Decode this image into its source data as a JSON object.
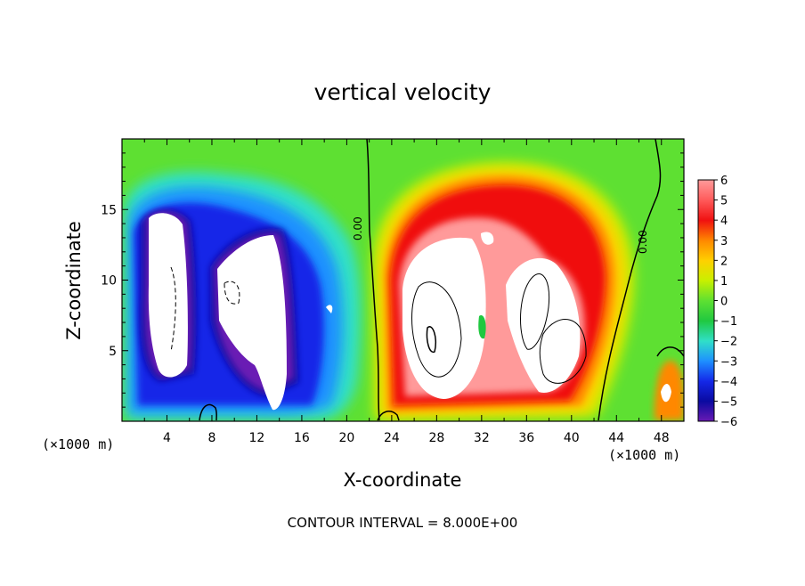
{
  "chart_data": {
    "type": "heatmap",
    "title": "vertical velocity",
    "xlabel": "X-coordinate",
    "ylabel": "Z-coordinate",
    "x_unit_left": "(×1000 m)",
    "x_unit_right": "(×1000 m)",
    "xlim": [
      0,
      50
    ],
    "ylim": [
      0,
      20
    ],
    "x_ticks": [
      4,
      8,
      12,
      16,
      20,
      24,
      28,
      32,
      36,
      40,
      44,
      48
    ],
    "x_tick_labels": [
      "4",
      "8",
      "12",
      "16",
      "20",
      "24",
      "28",
      "32",
      "36",
      "40",
      "44",
      "48"
    ],
    "y_ticks": [
      5,
      10,
      15
    ],
    "y_tick_labels": [
      "5",
      "10",
      "15"
    ],
    "colorbar": {
      "levels": [
        6,
        5,
        4,
        3,
        2,
        1,
        0,
        -1,
        -2,
        -3,
        -4,
        -5,
        -6
      ],
      "labels": [
        "6",
        "5",
        "4",
        "3",
        "2",
        "1",
        "0",
        "−1",
        "−2",
        "−3",
        "−4",
        "−5",
        "−6"
      ],
      "colors": [
        "#ff9a9a",
        "#ff5a5a",
        "#f01010",
        "#ff8800",
        "#ffd000",
        "#c8f000",
        "#5ee032",
        "#20c840",
        "#30e0c8",
        "#1e90ff",
        "#1428e8",
        "#0a0aa0",
        "#6a1ab4"
      ]
    },
    "contour_labels": [
      "0.00",
      "0.00"
    ],
    "contour_interval_text": "CONTOUR INTERVAL = 8.000E+00",
    "features": [
      {
        "sign": "negative",
        "x_range": [
          2,
          19
        ],
        "z_range": [
          0.5,
          17
        ],
        "peak": "-6"
      },
      {
        "sign": "positive",
        "x_range": [
          22,
          42
        ],
        "z_range": [
          0.5,
          18
        ],
        "peak": "6"
      },
      {
        "sign": "positive",
        "x_range": [
          46,
          50
        ],
        "z_range": [
          1,
          5
        ],
        "peak": "6"
      }
    ]
  }
}
